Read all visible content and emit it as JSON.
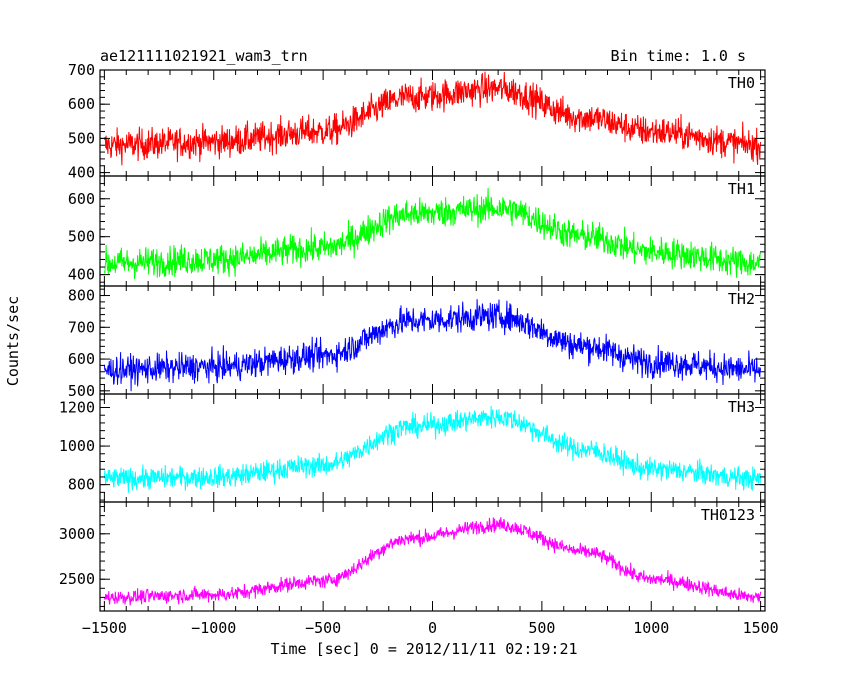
{
  "header": {
    "title": "ae121111021921_wam3_trn",
    "bin_time": "Bin time: 1.0 s"
  },
  "chart_data": {
    "type": "line",
    "xlabel": "Time [sec] 0 = 2012/11/11 02:19:21",
    "ylabel": "Counts/sec",
    "xlim": [
      -1520,
      1520
    ],
    "x_ticks": [
      -1500,
      -1000,
      -500,
      0,
      500,
      1000,
      1500
    ],
    "x_tick_labels": [
      "−1500",
      "−1000",
      "−500",
      "0",
      "500",
      "1000",
      "1500"
    ],
    "grid": false,
    "panels": [
      {
        "name": "TH0",
        "color": "#ff0000",
        "ylim": [
          390,
          700
        ],
        "yticks": [
          400,
          500,
          600,
          700
        ],
        "profile": {
          "x": [
            -1500,
            -1000,
            -500,
            -100,
            300,
            700,
            1000,
            1500
          ],
          "y": [
            480,
            490,
            520,
            620,
            645,
            560,
            520,
            480
          ]
        },
        "noise": 40
      },
      {
        "name": "TH1",
        "color": "#00ff00",
        "ylim": [
          370,
          660
        ],
        "yticks": [
          400,
          500,
          600
        ],
        "profile": {
          "x": [
            -1500,
            -1000,
            -500,
            -100,
            300,
            700,
            1000,
            1500
          ],
          "y": [
            430,
            440,
            470,
            560,
            575,
            500,
            460,
            430
          ]
        },
        "noise": 35
      },
      {
        "name": "TH2",
        "color": "#0000ff",
        "ylim": [
          490,
          830
        ],
        "yticks": [
          500,
          600,
          700,
          800
        ],
        "profile": {
          "x": [
            -1500,
            -1000,
            -500,
            -100,
            300,
            700,
            1000,
            1500
          ],
          "y": [
            565,
            575,
            610,
            720,
            735,
            640,
            590,
            565
          ]
        },
        "noise": 40
      },
      {
        "name": "TH3",
        "color": "#00ffff",
        "ylim": [
          710,
          1270
        ],
        "yticks": [
          800,
          1000,
          1200
        ],
        "profile": {
          "x": [
            -1500,
            -1000,
            -500,
            -100,
            300,
            700,
            1000,
            1500
          ],
          "y": [
            830,
            840,
            900,
            1100,
            1150,
            980,
            880,
            830
          ]
        },
        "noise": 50
      },
      {
        "name": "TH0123",
        "color": "#ff00ff",
        "ylim": [
          2150,
          3350
        ],
        "yticks": [
          2500,
          3000
        ],
        "profile": {
          "x": [
            -1500,
            -1000,
            -500,
            -100,
            300,
            700,
            1000,
            1500
          ],
          "y": [
            2300,
            2330,
            2480,
            2950,
            3100,
            2800,
            2500,
            2300
          ]
        },
        "noise": 70
      }
    ]
  }
}
